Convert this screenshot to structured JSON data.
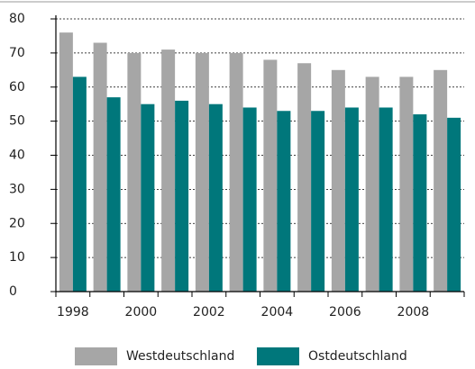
{
  "chart_data": {
    "type": "bar",
    "categories": [
      "1998",
      null,
      "2000",
      null,
      "2002",
      null,
      "2004",
      null,
      "2006",
      null,
      "2008",
      null
    ],
    "series": [
      {
        "name": "Westdeutschland",
        "color": "#a6a6a6",
        "values": [
          76,
          73,
          70,
          71,
          70,
          70,
          68,
          67,
          65,
          63,
          63,
          65
        ]
      },
      {
        "name": "Ostdeutschland",
        "color": "#00777b",
        "values": [
          63,
          57,
          55,
          56,
          55,
          54,
          53,
          53,
          54,
          54,
          52,
          51
        ]
      }
    ],
    "ylim": [
      0,
      80
    ],
    "yticks": [
      0,
      10,
      20,
      30,
      40,
      50,
      60,
      70,
      80
    ],
    "grid": true,
    "legend": "bottom"
  }
}
